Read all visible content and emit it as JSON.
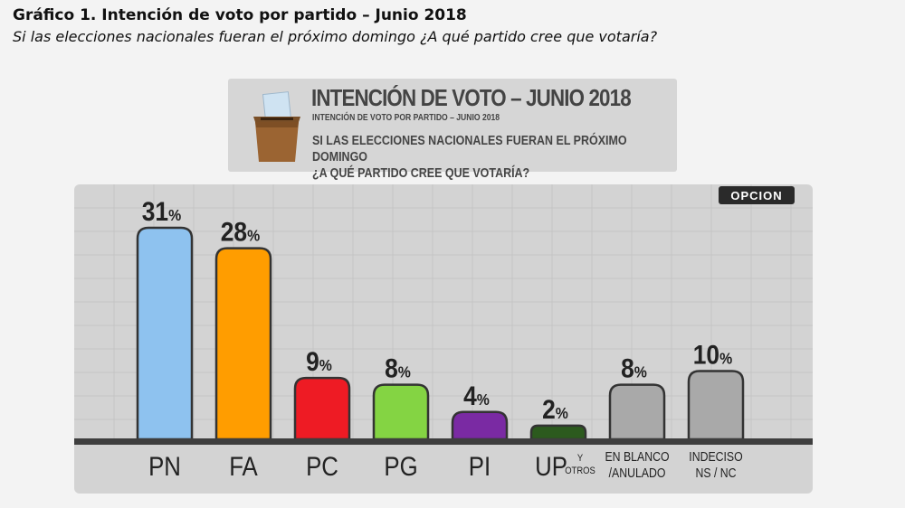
{
  "document": {
    "title": "Gráfico 1. Intención de voto por partido – Junio 2018",
    "subtitle": "Si las elecciones nacionales fueran el próximo domingo ¿A qué partido cree que votaría?"
  },
  "header": {
    "title": "INTENCIÓN DE VOTO – JUNIO 2018",
    "subtitle": "INTENCIÓN DE VOTO POR PARTIDO – JUNIO 2018",
    "question_line1": "SI LAS ELECCIONES NACIONALES FUERAN EL PRÓXIMO DOMINGO",
    "question_line2": "¿A QUÉ PARTIDO CREE QUE VOTARÍA?"
  },
  "logo": {
    "text": "OPCION"
  },
  "colors": {
    "PN": "#8ec2ef",
    "FA": "#ff9d00",
    "PC": "#ee1b24",
    "PG": "#84d443",
    "PI": "#7a2aa3",
    "UP": "#2c5a1e",
    "BLANCO": "#a9a9a9",
    "INDECISO": "#a9a9a9",
    "outline": "#333333",
    "baseline": "#3e3e3e"
  },
  "chart_data": {
    "type": "bar",
    "title": "INTENCIÓN DE VOTO – JUNIO 2018",
    "unit": "%",
    "ylim": [
      0,
      31
    ],
    "grid": true,
    "categories": [
      {
        "key": "PN",
        "label": [
          "PN"
        ],
        "value": 31
      },
      {
        "key": "FA",
        "label": [
          "FA"
        ],
        "value": 28
      },
      {
        "key": "PC",
        "label": [
          "PC"
        ],
        "value": 9
      },
      {
        "key": "PG",
        "label": [
          "PG"
        ],
        "value": 8
      },
      {
        "key": "PI",
        "label": [
          "PI"
        ],
        "value": 4
      },
      {
        "key": "UP",
        "label": [
          "UP"
        ],
        "label_extra": [
          "Y",
          "OTROS"
        ],
        "value": 2
      },
      {
        "key": "BLANCO",
        "label": [
          "EN BLANCO",
          "/ANULADO"
        ],
        "value": 8
      },
      {
        "key": "INDECISO",
        "label": [
          "INDECISO",
          "NS / NC"
        ],
        "value": 10
      }
    ]
  }
}
